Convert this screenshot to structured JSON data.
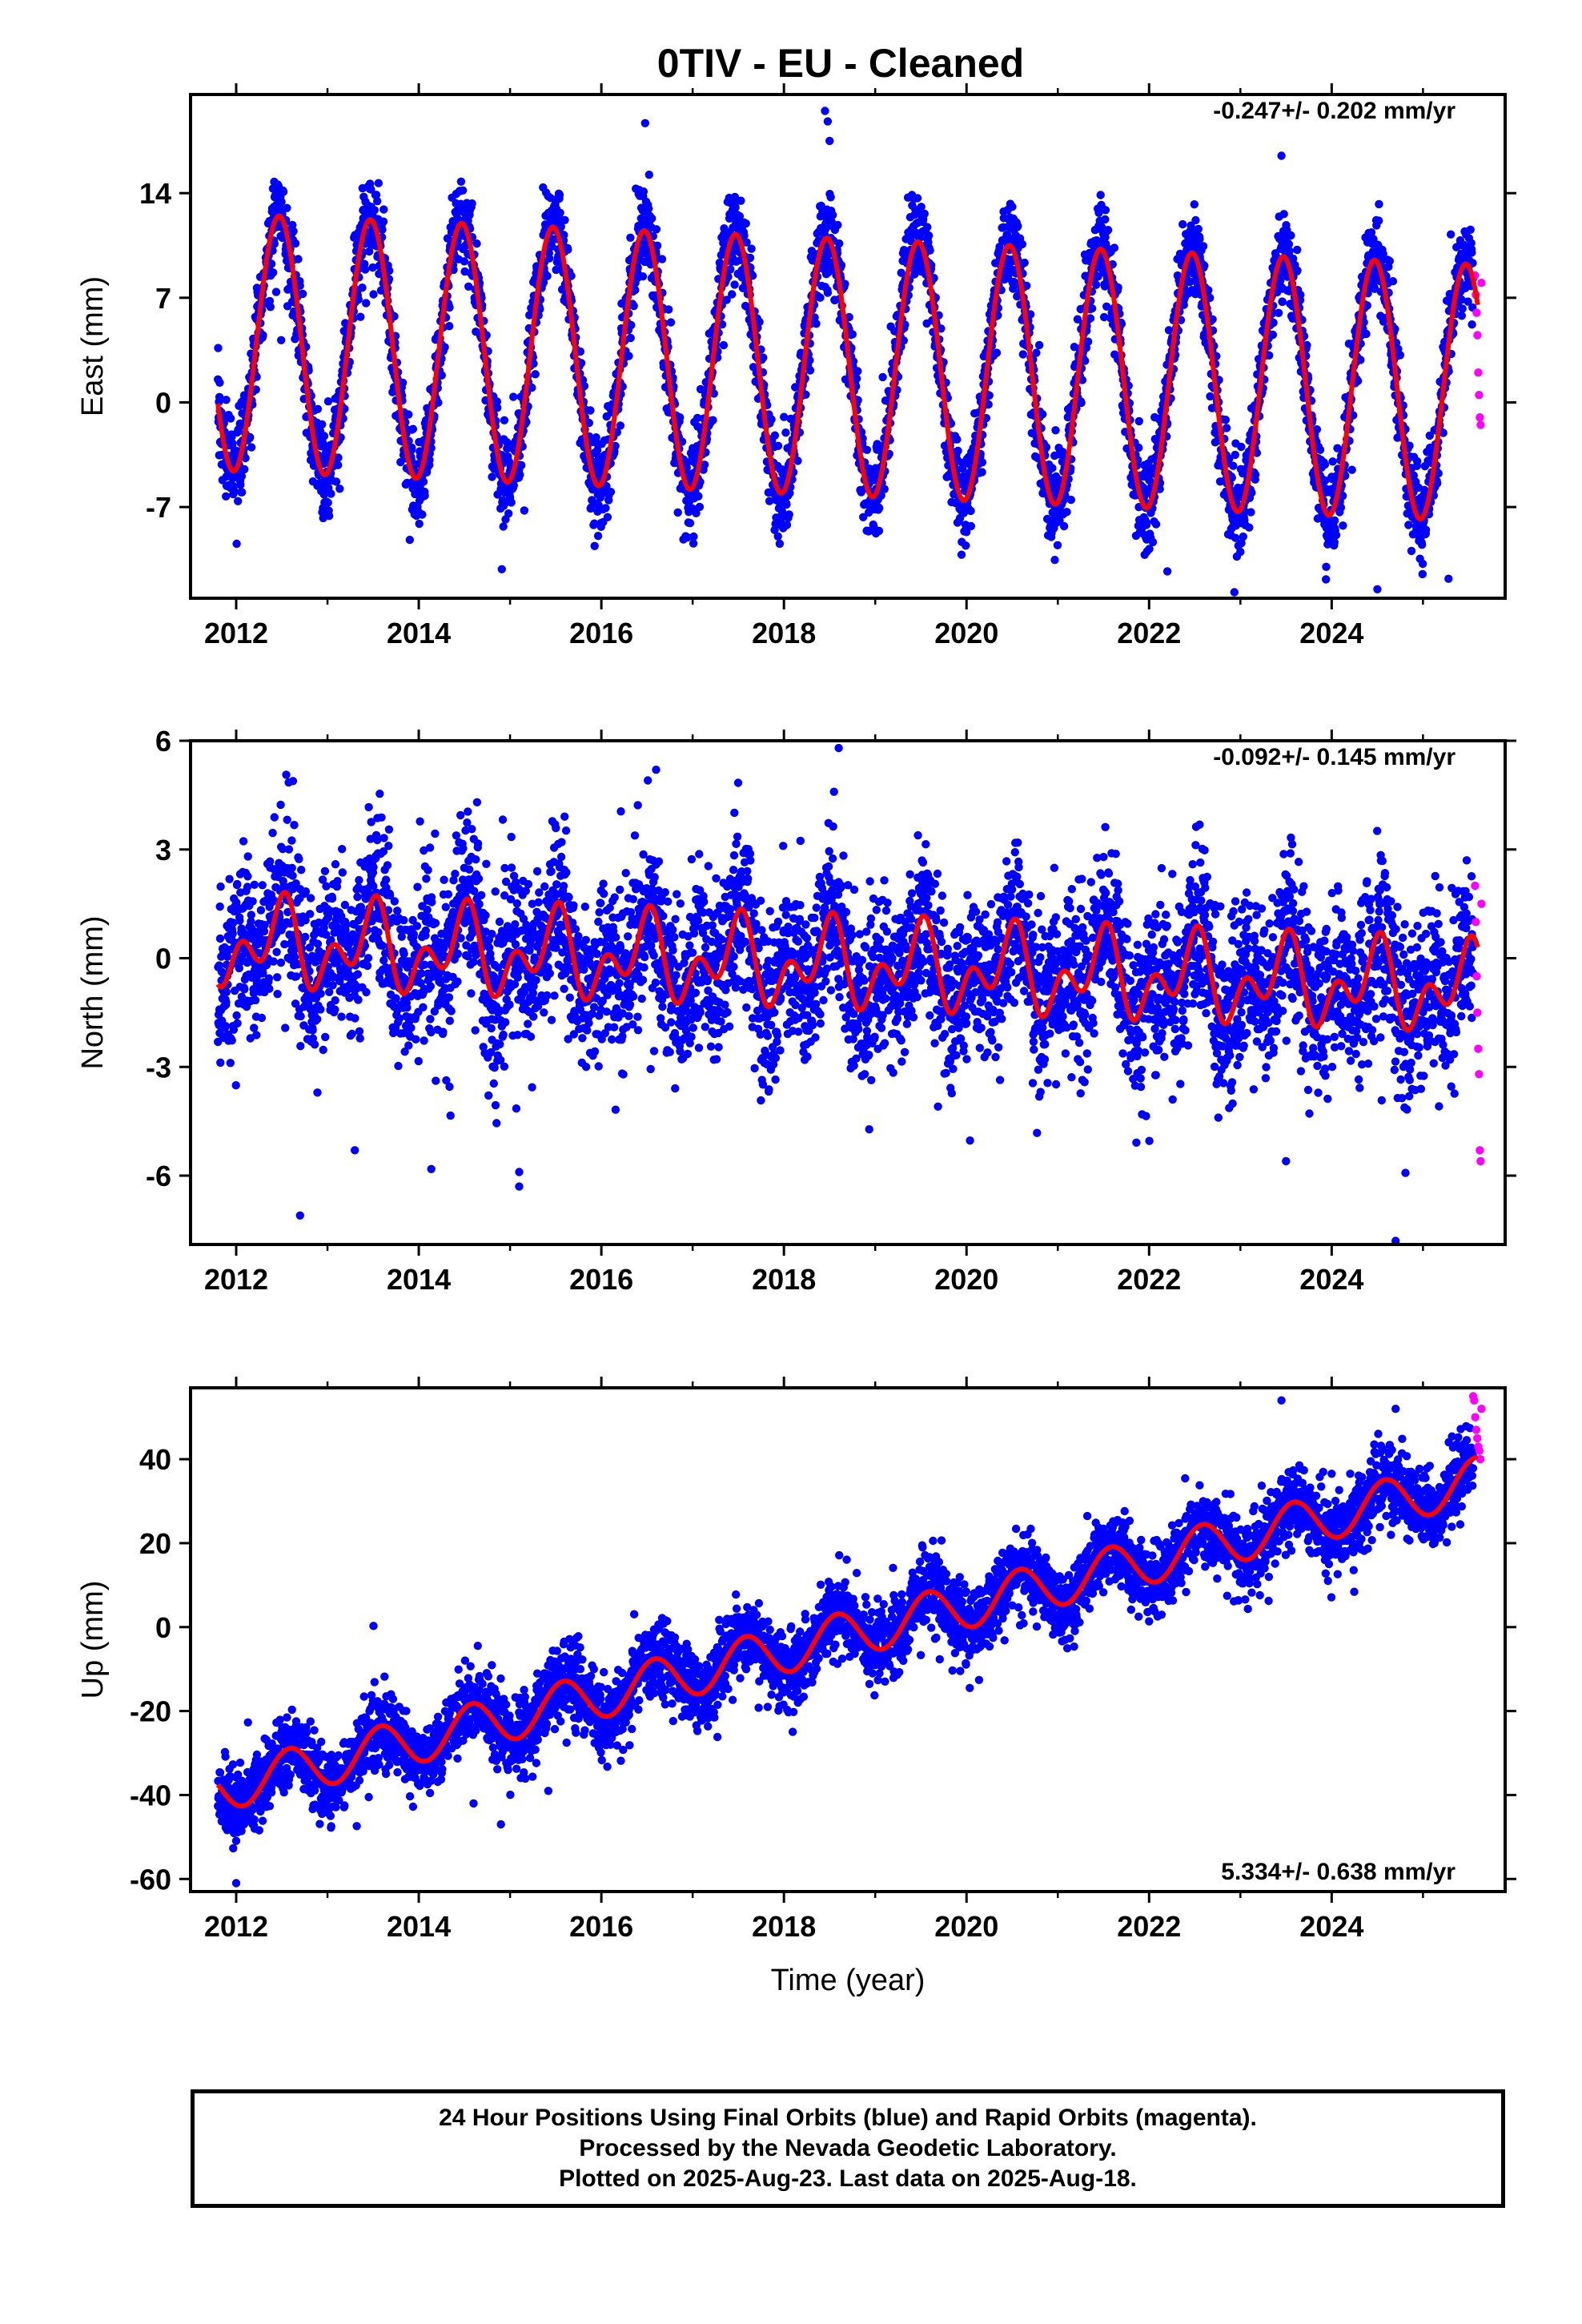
{
  "title": "0TIV  - EU - Cleaned",
  "colors": {
    "final": "#0000ff",
    "rapid": "#ff00ff",
    "model": "#ff0000",
    "frame": "#000000"
  },
  "footer": {
    "line1": "24 Hour Positions Using Final Orbits (blue) and Rapid Orbits (magenta).",
    "line2": "Processed by the Nevada Geodetic Laboratory.",
    "line3": "Plotted on 2025-Aug-23. Last data on 2025-Aug-18."
  },
  "chart_data": [
    {
      "type": "scatter",
      "ylabel": "East (mm)",
      "xlabel": "",
      "rate": "-0.247+/- 0.202 mm/yr",
      "xlim": [
        2011.5,
        2025.9
      ],
      "ylim": [
        -13.1,
        20.6
      ],
      "xticks": [
        "2012",
        "2014",
        "2016",
        "2018",
        "2020",
        "2022",
        "2024"
      ],
      "yticks": [
        "14",
        "7",
        "0",
        "-7"
      ],
      "series": [
        {
          "kind": "final",
          "x_start": 2011.8,
          "x_end": 2025.55,
          "model": {
            "offset": 4.0,
            "slope": -0.247,
            "amp1": 8.6,
            "phase1": 2012.47,
            "amp2": 0.0,
            "phase2": 2012.0
          },
          "noise": 1.5,
          "extra_points": [
            [
              2018.45,
              19.5
            ],
            [
              2018.5,
              17.5
            ],
            [
              2018.48,
              18.8
            ],
            [
              2023.45,
              16.5
            ],
            [
              2024.5,
              -12.5
            ],
            [
              2025.28,
              -11.8
            ],
            [
              2022.2,
              -11.3
            ],
            [
              2023.0,
              -10.0
            ]
          ]
        },
        {
          "kind": "rapid",
          "x_start": 2025.57,
          "x_end": 2025.64,
          "values": [
            8.5,
            7.2,
            6.0,
            4.5,
            2.0,
            0.5,
            -1.0,
            -1.5,
            8.0
          ]
        }
      ]
    },
    {
      "type": "scatter",
      "ylabel": "North (mm)",
      "xlabel": "",
      "rate": "-0.092+/- 0.145 mm/yr",
      "xlim": [
        2011.5,
        2025.9
      ],
      "ylim": [
        -7.9,
        6.0
      ],
      "xticks": [
        "2012",
        "2014",
        "2016",
        "2018",
        "2020",
        "2022",
        "2024"
      ],
      "yticks": [
        "6",
        "3",
        "0",
        "-3",
        "-6"
      ],
      "series": [
        {
          "kind": "final",
          "x_start": 2011.8,
          "x_end": 2025.55,
          "model": {
            "offset": 0.4,
            "slope": -0.092,
            "amp1": 0.8,
            "phase1": 2012.47,
            "amp2": 0.75,
            "phase2": 2012.05
          },
          "noise": 1.1,
          "extra_points": [
            [
              2012.7,
              -7.1
            ],
            [
              2015.1,
              -6.3
            ],
            [
              2015.1,
              -5.9
            ],
            [
              2018.6,
              5.8
            ],
            [
              2024.7,
              -7.8
            ],
            [
              2016.6,
              5.2
            ],
            [
              2013.3,
              -5.3
            ],
            [
              2023.5,
              -5.6
            ]
          ]
        },
        {
          "kind": "rapid",
          "x_start": 2025.57,
          "x_end": 2025.64,
          "values": [
            2.0,
            1.0,
            -0.5,
            -1.5,
            -2.5,
            -3.2,
            -5.3,
            -5.6,
            1.5
          ]
        }
      ]
    },
    {
      "type": "scatter",
      "ylabel": "Up (mm)",
      "xlabel": "Time (year)",
      "rate": "5.334+/- 0.638 mm/yr",
      "xlim": [
        2011.5,
        2025.9
      ],
      "ylim": [
        -63,
        57
      ],
      "xticks": [
        "2012",
        "2014",
        "2016",
        "2018",
        "2020",
        "2022",
        "2024"
      ],
      "yticks": [
        "40",
        "20",
        "0",
        "-20",
        "-40",
        "-60"
      ],
      "series": [
        {
          "kind": "final",
          "x_start": 2011.8,
          "x_end": 2025.55,
          "model": {
            "offset": -37.5,
            "slope": 5.334,
            "amp1": 5.5,
            "phase1": 2012.58,
            "amp2": 0.0,
            "phase2": 2012.0
          },
          "noise": 4.2,
          "extra_points": [
            [
              2012.0,
              -61
            ],
            [
              2014.6,
              -42
            ],
            [
              2014.9,
              -47
            ],
            [
              2023.45,
              54
            ],
            [
              2024.7,
              52
            ]
          ]
        },
        {
          "kind": "rapid",
          "x_start": 2025.55,
          "x_end": 2025.64,
          "values": [
            55,
            54,
            50,
            47,
            45,
            43,
            42,
            40,
            52
          ]
        }
      ]
    }
  ]
}
